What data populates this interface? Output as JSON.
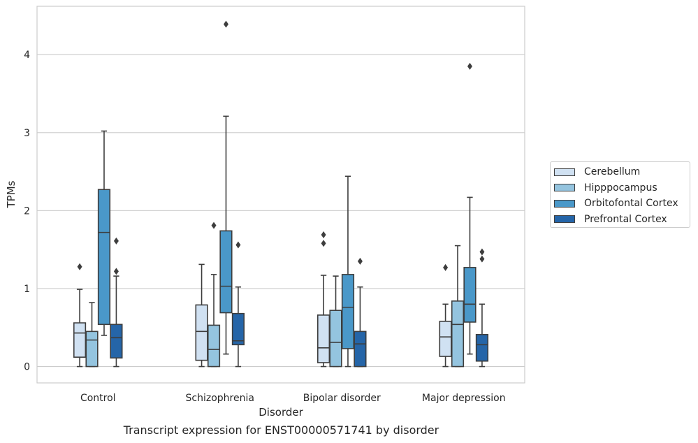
{
  "chart_data": {
    "type": "box",
    "xlabel": "Disorder",
    "ylabel": "TPMs",
    "caption": "Transcript expression for ENST00000571741 by disorder",
    "ylim": [
      -0.21,
      4.62
    ],
    "yticks": [
      0,
      1,
      2,
      3,
      4
    ],
    "grid": "horizontal",
    "legend_position": "right",
    "categories": [
      "Control",
      "Schizophrenia",
      "Bipolar disorder",
      "Major depression"
    ],
    "series": [
      {
        "name": "Cerebellum",
        "color": "#d0e1f2",
        "boxes": [
          {
            "whislo": 0.0,
            "q1": 0.12,
            "med": 0.43,
            "q3": 0.56,
            "whishi": 0.99,
            "fliers": [
              1.28
            ]
          },
          {
            "whislo": 0.0,
            "q1": 0.08,
            "med": 0.45,
            "q3": 0.79,
            "whishi": 1.31,
            "fliers": []
          },
          {
            "whislo": 0.0,
            "q1": 0.05,
            "med": 0.24,
            "q3": 0.66,
            "whishi": 1.17,
            "fliers": [
              1.58,
              1.69
            ]
          },
          {
            "whislo": 0.0,
            "q1": 0.13,
            "med": 0.38,
            "q3": 0.58,
            "whishi": 0.8,
            "fliers": [
              1.27
            ]
          }
        ]
      },
      {
        "name": "Hipppocampus",
        "color": "#94c4df",
        "boxes": [
          {
            "whislo": 0.0,
            "q1": 0.0,
            "med": 0.34,
            "q3": 0.45,
            "whishi": 0.82,
            "fliers": []
          },
          {
            "whislo": 0.0,
            "q1": 0.0,
            "med": 0.22,
            "q3": 0.53,
            "whishi": 1.18,
            "fliers": [
              1.81
            ]
          },
          {
            "whislo": 0.0,
            "q1": 0.0,
            "med": 0.31,
            "q3": 0.72,
            "whishi": 1.16,
            "fliers": []
          },
          {
            "whislo": 0.0,
            "q1": 0.0,
            "med": 0.54,
            "q3": 0.84,
            "whishi": 1.55,
            "fliers": []
          }
        ]
      },
      {
        "name": "Orbitofontal Cortex",
        "color": "#4a98c9",
        "boxes": [
          {
            "whislo": 0.4,
            "q1": 0.54,
            "med": 1.72,
            "q3": 2.27,
            "whishi": 3.02,
            "fliers": []
          },
          {
            "whislo": 0.16,
            "q1": 0.69,
            "med": 1.03,
            "q3": 1.74,
            "whishi": 3.21,
            "fliers": [
              4.39
            ]
          },
          {
            "whislo": 0.0,
            "q1": 0.23,
            "med": 0.76,
            "q3": 1.18,
            "whishi": 2.44,
            "fliers": []
          },
          {
            "whislo": 0.16,
            "q1": 0.57,
            "med": 0.8,
            "q3": 1.27,
            "whishi": 2.17,
            "fliers": [
              3.85
            ]
          }
        ]
      },
      {
        "name": "Prefrontal Cortex",
        "color": "#2565a8",
        "boxes": [
          {
            "whislo": 0.0,
            "q1": 0.11,
            "med": 0.37,
            "q3": 0.54,
            "whishi": 1.16,
            "fliers": [
              1.22,
              1.61
            ]
          },
          {
            "whislo": 0.0,
            "q1": 0.28,
            "med": 0.33,
            "q3": 0.68,
            "whishi": 1.02,
            "fliers": [
              1.56
            ]
          },
          {
            "whislo": 0.0,
            "q1": 0.0,
            "med": 0.29,
            "q3": 0.45,
            "whishi": 1.02,
            "fliers": [
              1.35
            ]
          },
          {
            "whislo": 0.0,
            "q1": 0.07,
            "med": 0.28,
            "q3": 0.41,
            "whishi": 0.8,
            "fliers": [
              1.38,
              1.47
            ]
          }
        ]
      }
    ]
  }
}
